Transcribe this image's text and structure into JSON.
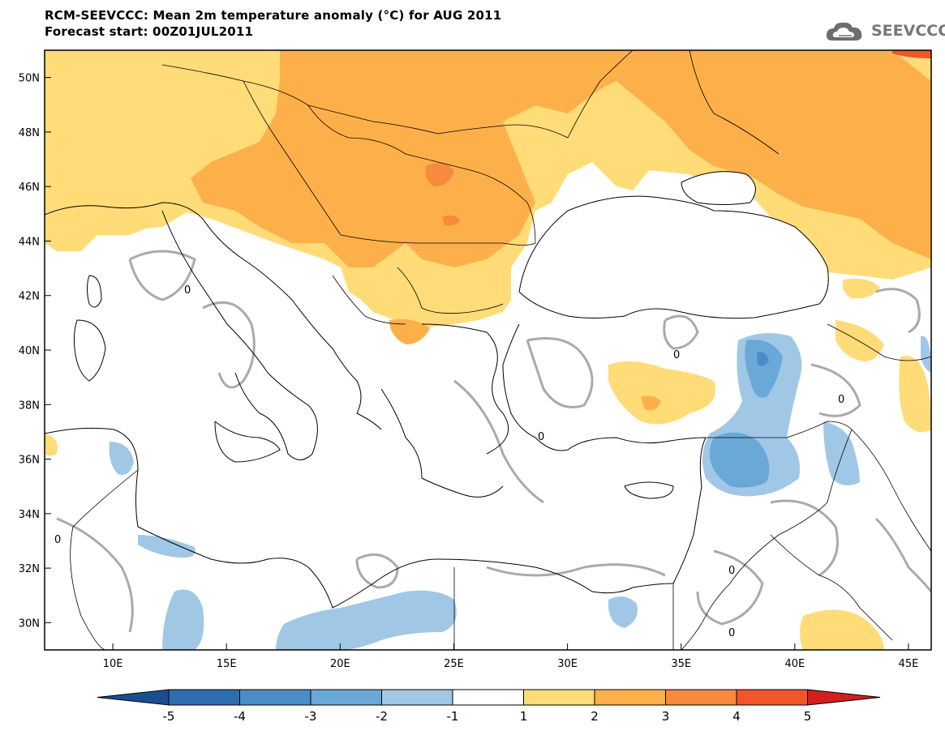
{
  "title_line1": "RCM-SEEVCCC: Mean 2m temperature anomaly (°C) for AUG 2011",
  "title_line2": "Forecast start: 00Z01JUL2011",
  "logo_text": "SEEVCCC",
  "contour_label": "0",
  "chart_data": {
    "type": "heatmap",
    "y_ticks": [
      "30N",
      "32N",
      "34N",
      "36N",
      "38N",
      "40N",
      "42N",
      "44N",
      "46N",
      "48N",
      "50N"
    ],
    "x_ticks": [
      "10E",
      "15E",
      "20E",
      "25E",
      "30E",
      "35E",
      "40E",
      "45E"
    ],
    "lon_range": [
      7,
      46
    ],
    "lat_range": [
      29,
      51
    ],
    "colorbar": {
      "labels": [
        "-5",
        "-4",
        "-3",
        "-2",
        "-1",
        "1",
        "2",
        "3",
        "4",
        "5"
      ],
      "colors": [
        "#1a4f8f",
        "#2e6db0",
        "#4a8cc8",
        "#6aa8d8",
        "#a0c8e6",
        "#ffffff",
        "#ffdc78",
        "#fdb04a",
        "#f78a3c",
        "#f2552a",
        "#d41e1e"
      ]
    },
    "zero_contour_color": "#aaaaaa"
  }
}
